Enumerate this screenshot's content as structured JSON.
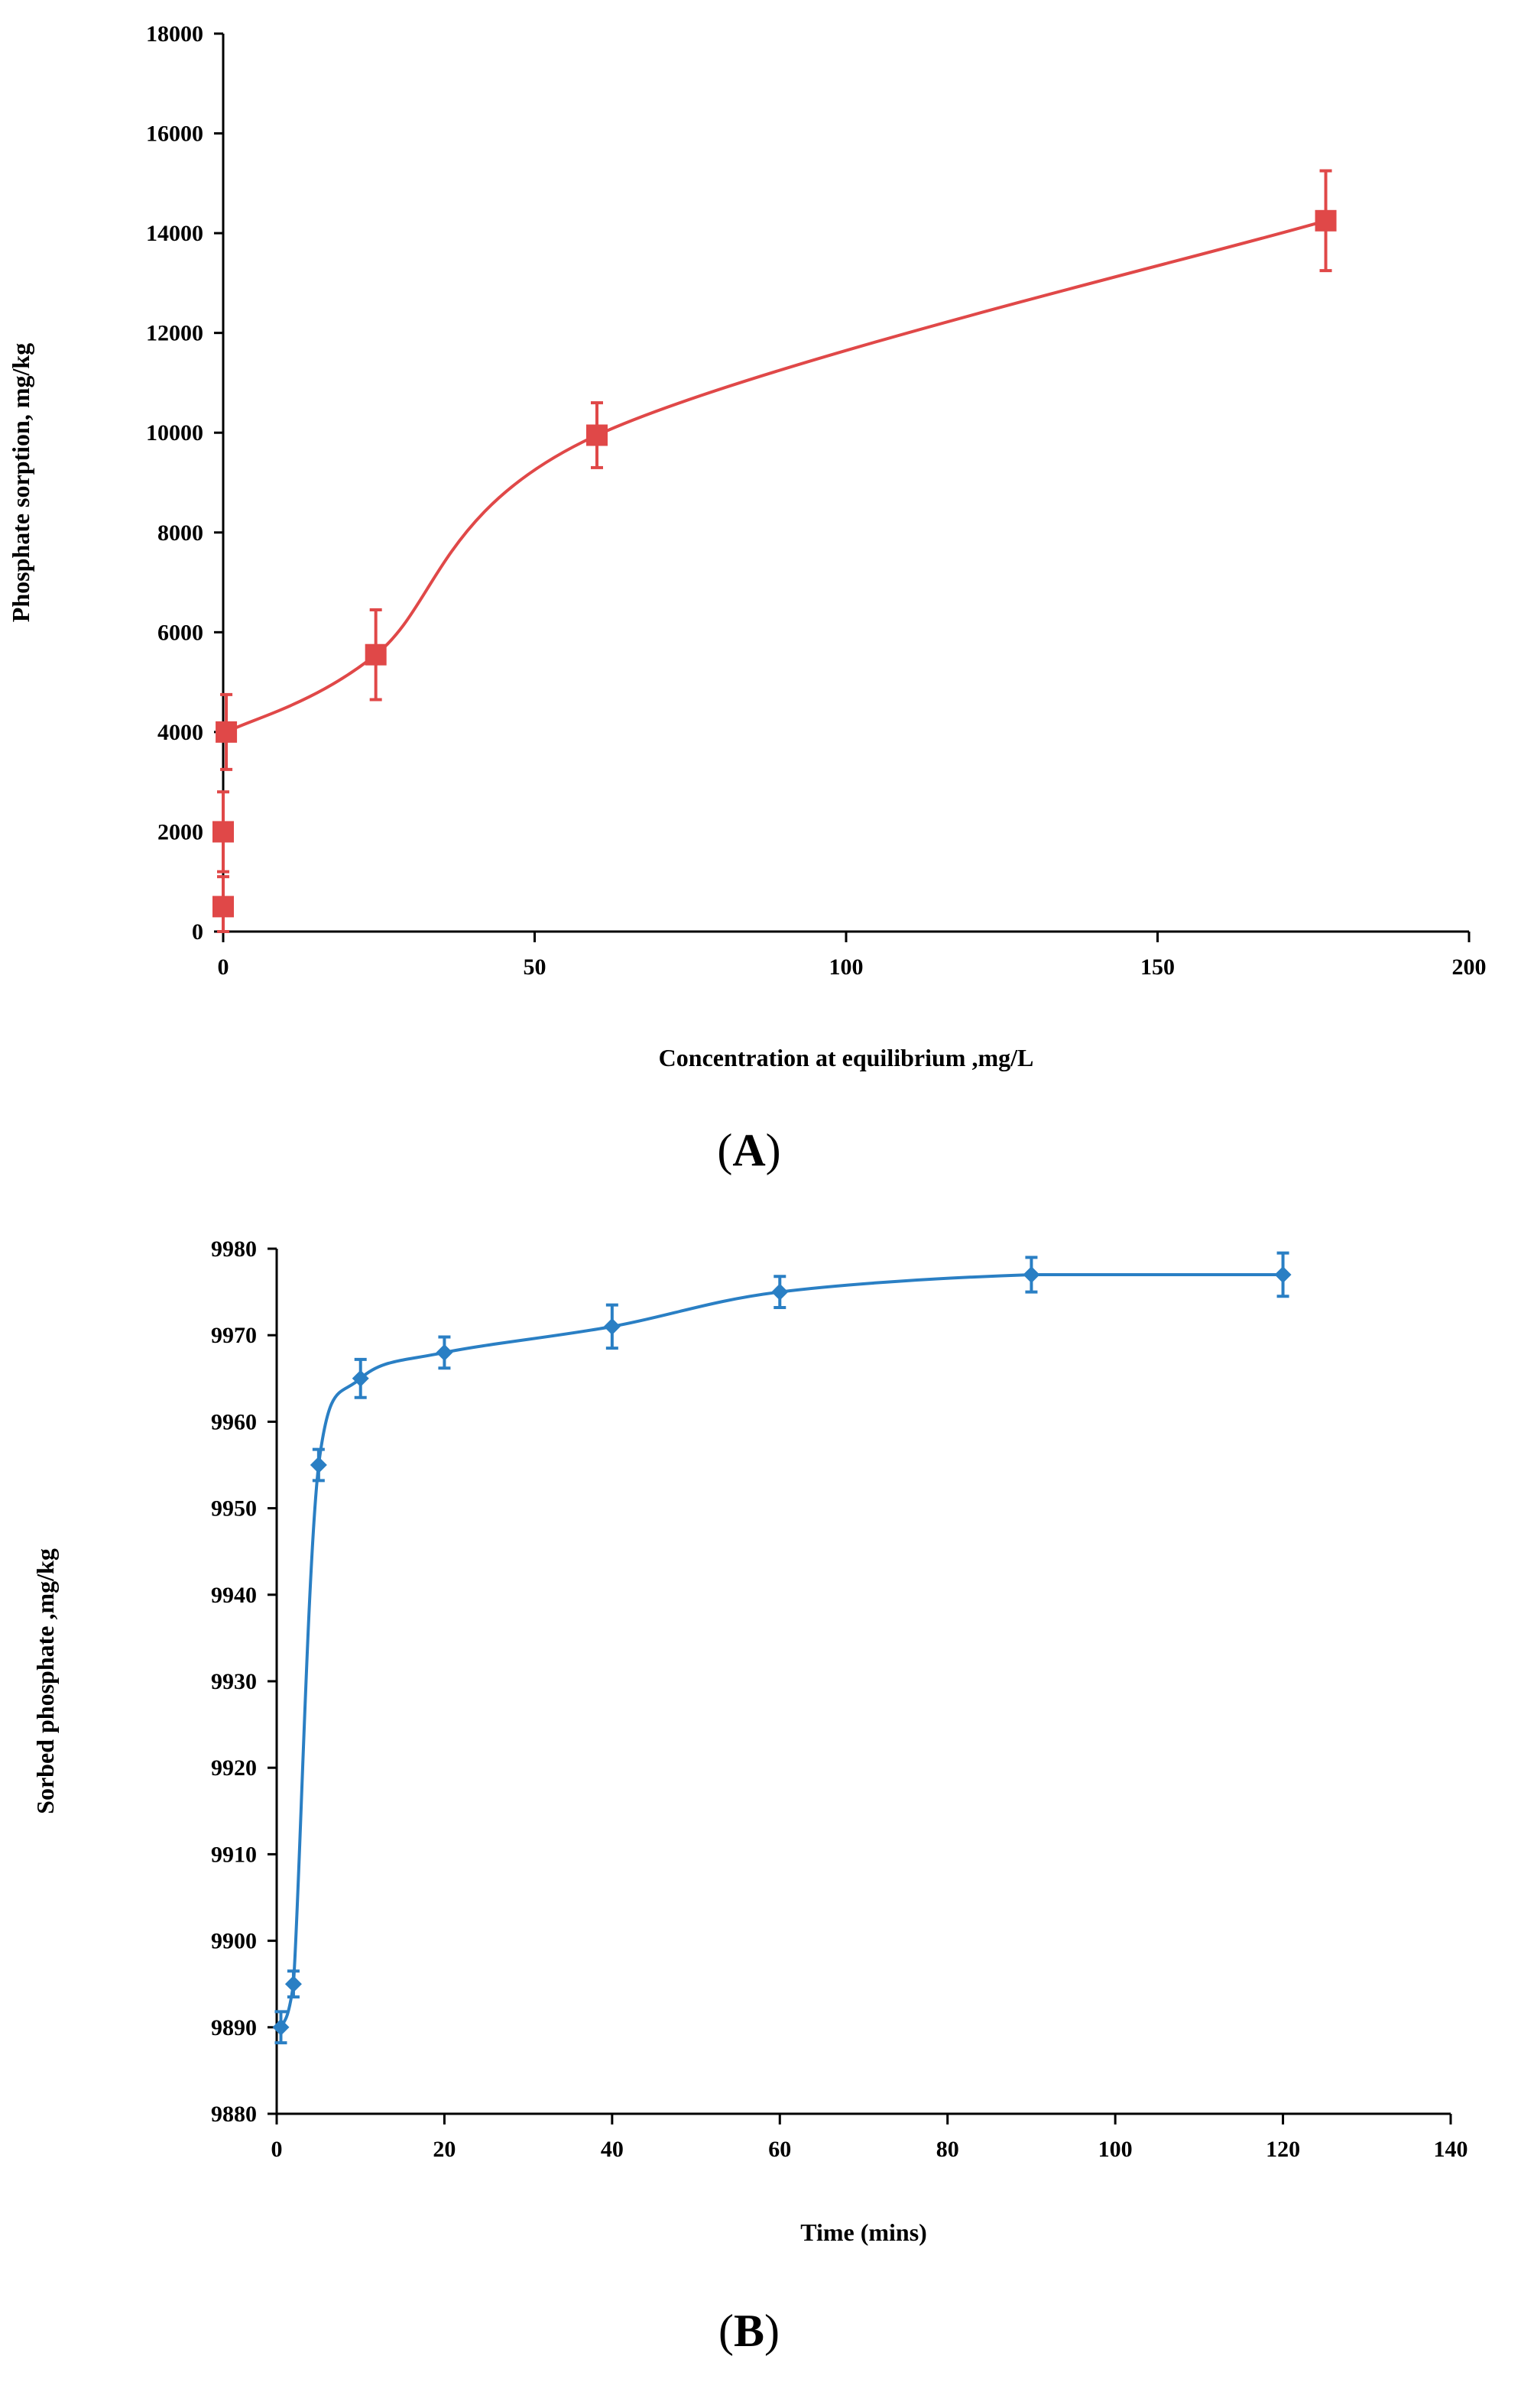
{
  "chart_data": [
    {
      "id": "A",
      "type": "scatter",
      "panel_label": "A",
      "xlabel": "Concentration at equilibrium ,mg/L",
      "ylabel": "Phosphate sorption, mg/kg",
      "xlim": [
        0,
        200
      ],
      "ylim": [
        0,
        18000
      ],
      "xticks": [
        0,
        50,
        100,
        150,
        200
      ],
      "yticks": [
        0,
        2000,
        4000,
        6000,
        8000,
        10000,
        12000,
        14000,
        16000,
        18000
      ],
      "marker": "square",
      "color": "#e04848",
      "grid": false,
      "series": [
        {
          "name": "Phosphate sorption",
          "x": [
            0,
            0,
            0.5,
            24.5,
            60,
            177
          ],
          "y": [
            500,
            2000,
            4000,
            5550,
            9950,
            14250
          ],
          "error": [
            600,
            800,
            750,
            900,
            650,
            1000
          ]
        }
      ]
    },
    {
      "id": "B",
      "type": "scatter",
      "panel_label": "B",
      "xlabel": "Time (mins)",
      "ylabel": "Sorbed phosphate ,mg/kg",
      "xlim": [
        0,
        140
      ],
      "ylim": [
        9880,
        9980
      ],
      "xticks": [
        0,
        20,
        40,
        60,
        80,
        100,
        120,
        140
      ],
      "yticks": [
        9880,
        9890,
        9900,
        9910,
        9920,
        9930,
        9940,
        9950,
        9960,
        9970,
        9980
      ],
      "marker": "diamond",
      "color": "#2a7fc4",
      "grid": false,
      "series": [
        {
          "name": "Sorbed phosphate",
          "x": [
            0.5,
            2,
            5,
            10,
            20,
            40,
            60,
            90,
            120
          ],
          "y": [
            9890,
            9895,
            9955,
            9965,
            9968,
            9971,
            9975,
            9977,
            9977
          ],
          "error": [
            1.8,
            1.5,
            1.8,
            2.2,
            1.8,
            2.5,
            1.8,
            2.0,
            2.5
          ]
        }
      ]
    }
  ]
}
